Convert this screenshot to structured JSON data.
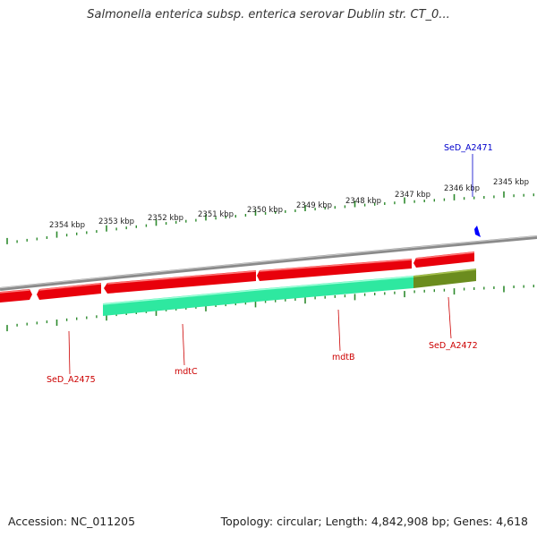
{
  "title": "Salmonella enterica subsp. enterica serovar Dublin str. CT_0...",
  "footer": {
    "accession": "Accession: NC_011205",
    "summary": "Topology: circular; Length: 4,842,908 bp; Genes: 4,618"
  },
  "colors": {
    "forward_gene": "#e8000b",
    "reverse_gene_cds": "#2ee8a0",
    "reverse_gene_other": "#6b8c1e",
    "backbone": "#8a8a8a",
    "tick": "#2e8b2e",
    "label_red": "#cc0000",
    "label_blue": "#0000cc"
  },
  "scale": {
    "labels": [
      "2354 kbp",
      "2353 kbp",
      "2352 kbp",
      "2351 kbp",
      "2350 kbp",
      "2349 kbp",
      "2348 kbp",
      "2347 kbp",
      "2346 kbp",
      "2345 kbp"
    ]
  },
  "genes": [
    {
      "name": "SeD_A2471",
      "strand": "forward",
      "color": "blue"
    },
    {
      "name": "SeD_A2472",
      "strand": "reverse",
      "color": "red"
    },
    {
      "name": "mdtB",
      "strand": "reverse",
      "color": "red"
    },
    {
      "name": "mdtC",
      "strand": "reverse",
      "color": "red"
    },
    {
      "name": "SeD_A2475",
      "strand": "reverse",
      "color": "red"
    }
  ]
}
